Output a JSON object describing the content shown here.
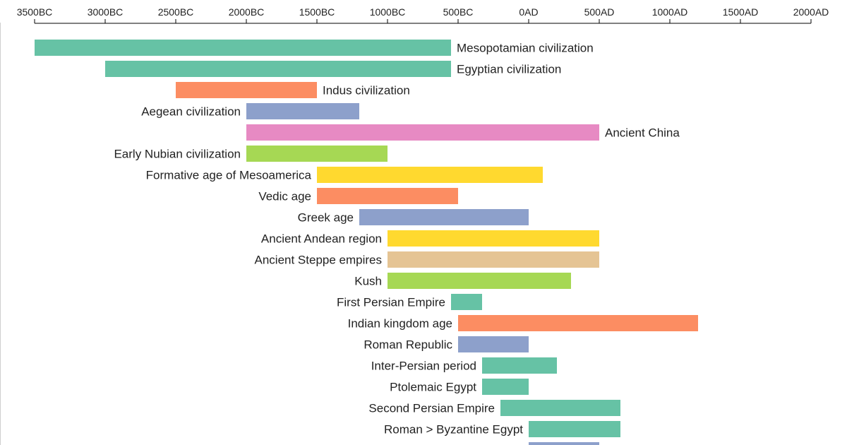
{
  "chart_data": {
    "type": "bar",
    "orientation": "horizontal-range",
    "x_axis": {
      "position": "top",
      "range": [
        -3500,
        2000
      ],
      "ticks": [
        {
          "value": -3500,
          "label": "3500BC"
        },
        {
          "value": -3000,
          "label": "3000BC"
        },
        {
          "value": -2500,
          "label": "2500BC"
        },
        {
          "value": -2000,
          "label": "2000BC"
        },
        {
          "value": -1500,
          "label": "1500BC"
        },
        {
          "value": -1000,
          "label": "1000BC"
        },
        {
          "value": -500,
          "label": "500BC"
        },
        {
          "value": 0,
          "label": "0AD"
        },
        {
          "value": 500,
          "label": "500AD"
        },
        {
          "value": 1000,
          "label": "1000AD"
        },
        {
          "value": 1500,
          "label": "1500AD"
        },
        {
          "value": 2000,
          "label": "2000AD"
        }
      ]
    },
    "grid": false,
    "bars": [
      {
        "label": "Mesopotamian civilization",
        "start": -3500,
        "end": -550,
        "color": "#66c2a5",
        "label_side": "right"
      },
      {
        "label": "Egyptian civilization",
        "start": -3000,
        "end": -550,
        "color": "#66c2a5",
        "label_side": "right"
      },
      {
        "label": "Indus civilization",
        "start": -2500,
        "end": -1500,
        "color": "#fc8d62",
        "label_side": "right"
      },
      {
        "label": "Aegean civilization",
        "start": -2000,
        "end": -1200,
        "color": "#8da0cb",
        "label_side": "left"
      },
      {
        "label": "Ancient China",
        "start": -2000,
        "end": 500,
        "color": "#e78ac3",
        "label_side": "right"
      },
      {
        "label": "Early Nubian civilization",
        "start": -2000,
        "end": -1000,
        "color": "#a6d854",
        "label_side": "left"
      },
      {
        "label": "Formative age of Mesoamerica",
        "start": -1500,
        "end": 100,
        "color": "#ffd92f",
        "label_side": "left"
      },
      {
        "label": "Vedic age",
        "start": -1500,
        "end": -500,
        "color": "#fc8d62",
        "label_side": "left"
      },
      {
        "label": "Greek age",
        "start": -1200,
        "end": 0,
        "color": "#8da0cb",
        "label_side": "left"
      },
      {
        "label": "Ancient Andean region",
        "start": -1000,
        "end": 500,
        "color": "#ffd92f",
        "label_side": "left"
      },
      {
        "label": "Ancient Steppe empires",
        "start": -1000,
        "end": 500,
        "color": "#e5c494",
        "label_side": "left"
      },
      {
        "label": "Kush",
        "start": -1000,
        "end": 300,
        "color": "#a6d854",
        "label_side": "left"
      },
      {
        "label": "First Persian Empire",
        "start": -550,
        "end": -330,
        "color": "#66c2a5",
        "label_side": "left"
      },
      {
        "label": "Indian kingdom age",
        "start": -500,
        "end": 1200,
        "color": "#fc8d62",
        "label_side": "left"
      },
      {
        "label": "Roman Republic",
        "start": -500,
        "end": 0,
        "color": "#8da0cb",
        "label_side": "left"
      },
      {
        "label": "Inter-Persian period",
        "start": -330,
        "end": 200,
        "color": "#66c2a5",
        "label_side": "left"
      },
      {
        "label": "Ptolemaic Egypt",
        "start": -330,
        "end": 0,
        "color": "#66c2a5",
        "label_side": "left"
      },
      {
        "label": "Second Persian Empire",
        "start": -200,
        "end": 650,
        "color": "#66c2a5",
        "label_side": "left"
      },
      {
        "label": "Roman > Byzantine Egypt",
        "start": 0,
        "end": 650,
        "color": "#66c2a5",
        "label_side": "left"
      },
      {
        "label": "",
        "start": 0,
        "end": 500,
        "color": "#8da0cb",
        "label_side": "left"
      }
    ]
  }
}
